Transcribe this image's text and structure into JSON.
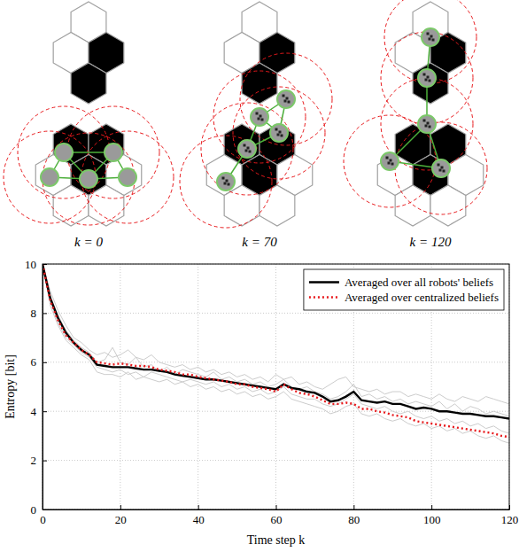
{
  "panels": [
    {
      "label": "k = 0"
    },
    {
      "label": "k = 70"
    },
    {
      "label": "k = 120"
    }
  ],
  "chart_data": {
    "type": "line",
    "xlabel": "Time step k",
    "ylabel": "Entropy [bit]",
    "xlim": [
      0,
      120
    ],
    "xticks": [
      0,
      20,
      40,
      60,
      80,
      100,
      120
    ],
    "ylim": [
      0,
      10
    ],
    "yticks": [
      0,
      2,
      4,
      6,
      8,
      10
    ],
    "grid": true,
    "legend": "upper right",
    "x": [
      0,
      2,
      4,
      6,
      8,
      10,
      12,
      14,
      16,
      18,
      20,
      22,
      24,
      26,
      28,
      30,
      32,
      34,
      36,
      38,
      40,
      42,
      44,
      46,
      48,
      50,
      52,
      54,
      56,
      58,
      60,
      62,
      64,
      66,
      68,
      70,
      72,
      74,
      76,
      78,
      80,
      82,
      84,
      86,
      88,
      90,
      92,
      94,
      96,
      98,
      100,
      102,
      104,
      106,
      108,
      110,
      112,
      114,
      116,
      118,
      120
    ],
    "series": [
      {
        "color": "#cccccc",
        "line_style": "solid",
        "values": [
          10,
          8.9,
          8.1,
          7.5,
          7.0,
          6.8,
          6.5,
          6.3,
          6.4,
          6.2,
          6.3,
          6.5,
          6.2,
          6.1,
          6.3,
          6.0,
          5.9,
          5.8,
          5.9,
          5.7,
          5.8,
          5.6,
          5.7,
          5.5,
          5.6,
          5.4,
          5.5,
          5.3,
          5.4,
          5.2,
          5.5,
          5.3,
          5.4,
          5.1,
          5.2,
          5.0,
          4.9,
          5.1,
          5.3,
          5.4,
          5.0,
          4.9,
          4.8,
          4.9,
          4.7,
          4.8,
          4.8,
          4.6,
          4.7,
          4.6,
          4.5,
          4.7,
          4.5,
          4.4,
          4.6,
          4.5,
          4.4,
          4.6,
          4.5,
          4.4,
          4.3
        ]
      },
      {
        "color": "#cccccc",
        "line_style": "solid",
        "values": [
          10,
          8.3,
          7.5,
          6.9,
          6.6,
          6.3,
          6.1,
          5.6,
          5.5,
          5.5,
          5.4,
          5.6,
          5.3,
          5.4,
          5.3,
          5.2,
          5.3,
          5.1,
          5.2,
          5.0,
          5.1,
          4.9,
          5.0,
          4.8,
          4.9,
          4.7,
          4.8,
          4.6,
          4.7,
          4.5,
          4.6,
          4.8,
          4.5,
          4.4,
          4.3,
          4.2,
          4.1,
          3.9,
          4.0,
          4.2,
          4.3,
          3.9,
          3.8,
          3.9,
          3.7,
          3.6,
          3.7,
          3.5,
          3.4,
          3.5,
          3.3,
          3.4,
          3.2,
          3.3,
          3.1,
          3.2,
          3.0,
          2.9,
          3.0,
          2.8,
          2.7
        ]
      },
      {
        "color": "#cccccc",
        "line_style": "solid",
        "values": [
          10,
          8.7,
          7.9,
          7.3,
          6.9,
          6.6,
          6.4,
          6.0,
          6.1,
          6.6,
          6.0,
          5.9,
          6.2,
          5.8,
          5.9,
          5.6,
          5.8,
          5.5,
          5.7,
          5.6,
          5.5,
          5.4,
          5.6,
          5.3,
          5.4,
          5.2,
          5.3,
          5.1,
          5.2,
          5.0,
          5.1,
          5.3,
          5.0,
          4.9,
          5.0,
          4.8,
          4.7,
          4.5,
          4.6,
          4.8,
          5.1,
          4.6,
          4.7,
          4.5,
          4.6,
          4.4,
          4.5,
          4.3,
          4.4,
          4.3,
          4.2,
          4.4,
          4.1,
          4.3,
          4.0,
          4.2,
          4.1,
          3.9,
          4.0,
          3.9,
          3.8
        ]
      },
      {
        "color": "#cccccc",
        "line_style": "solid",
        "values": [
          10,
          8.5,
          7.6,
          7.0,
          6.7,
          6.4,
          6.2,
          5.8,
          5.7,
          5.6,
          5.7,
          5.5,
          5.6,
          5.4,
          5.6,
          5.5,
          5.4,
          5.3,
          5.2,
          5.3,
          5.2,
          5.1,
          5.2,
          5.0,
          5.1,
          4.9,
          5.0,
          4.8,
          4.9,
          4.7,
          4.8,
          5.0,
          4.7,
          4.6,
          4.5,
          4.5,
          4.3,
          4.2,
          4.3,
          4.5,
          4.7,
          4.3,
          4.2,
          4.1,
          4.2,
          4.0,
          3.9,
          4.0,
          3.8,
          3.7,
          3.8,
          3.6,
          3.7,
          3.5,
          3.6,
          3.4,
          3.5,
          3.3,
          3.4,
          3.2,
          3.1
        ]
      },
      {
        "name": "Averaged over all robots' beliefs",
        "color": "#000000",
        "line_style": "solid",
        "values": [
          10,
          8.6,
          7.8,
          7.2,
          6.8,
          6.5,
          6.3,
          5.9,
          5.85,
          5.8,
          5.8,
          5.8,
          5.75,
          5.7,
          5.7,
          5.65,
          5.6,
          5.5,
          5.45,
          5.4,
          5.35,
          5.3,
          5.3,
          5.25,
          5.2,
          5.15,
          5.1,
          5.05,
          5.0,
          4.95,
          4.9,
          5.1,
          4.95,
          4.9,
          4.8,
          4.75,
          4.6,
          4.4,
          4.45,
          4.6,
          4.8,
          4.45,
          4.4,
          4.35,
          4.4,
          4.3,
          4.3,
          4.2,
          4.1,
          4.15,
          4.1,
          4.0,
          4.0,
          3.95,
          3.9,
          3.9,
          3.85,
          3.8,
          3.8,
          3.75,
          3.7
        ]
      },
      {
        "name": "Averaged over centralized beliefs",
        "color": "#e8191c",
        "line_style": "dotted",
        "values": [
          10,
          8.5,
          7.7,
          7.1,
          6.8,
          6.5,
          6.3,
          6.0,
          5.95,
          5.9,
          5.95,
          5.9,
          5.85,
          5.85,
          5.8,
          5.7,
          5.65,
          5.6,
          5.5,
          5.5,
          5.4,
          5.35,
          5.3,
          5.25,
          5.2,
          5.1,
          5.1,
          5.0,
          4.95,
          4.9,
          4.8,
          5.1,
          4.9,
          4.75,
          4.7,
          4.6,
          4.45,
          4.3,
          4.3,
          4.35,
          4.3,
          4.1,
          4.1,
          4.0,
          3.95,
          3.85,
          3.8,
          3.75,
          3.6,
          3.55,
          3.5,
          3.45,
          3.4,
          3.35,
          3.3,
          3.25,
          3.2,
          3.15,
          3.1,
          3.0,
          2.95
        ]
      }
    ]
  }
}
